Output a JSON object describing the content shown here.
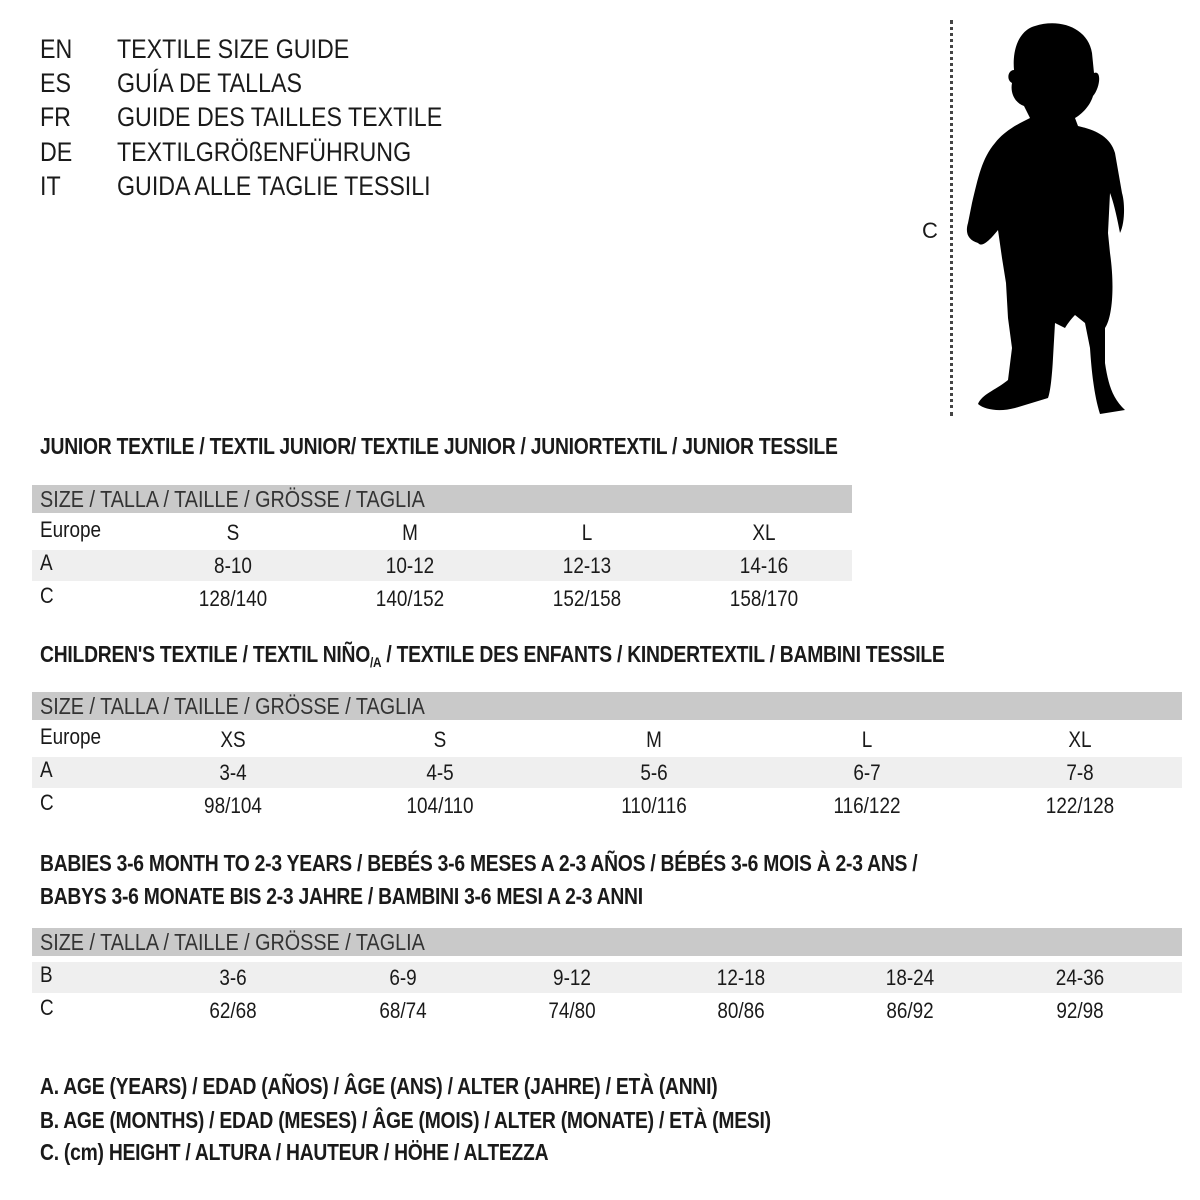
{
  "languages": [
    {
      "code": "EN",
      "title": "TEXTILE SIZE GUIDE"
    },
    {
      "code": "ES",
      "title": "GUÍA DE TALLAS"
    },
    {
      "code": "FR",
      "title": "GUIDE DES TAILLES TEXTILE"
    },
    {
      "code": "DE",
      "title": "TEXTILGRÖßENFÜHRUNG"
    },
    {
      "code": "IT",
      "title": "GUIDA ALLE TAGLIE TESSILI"
    }
  ],
  "figure": {
    "measure_label": "C",
    "icon": "child-silhouette"
  },
  "junior": {
    "title": "JUNIOR TEXTILE / TEXTIL JUNIOR/ TEXTILE JUNIOR / JUNIORTEXTIL / JUNIOR TESSILE",
    "header": "SIZE / TALLA / TAILLE / GRÖSSE / TAGLIA",
    "rows": [
      {
        "label": "Europe",
        "cells": [
          "S",
          "M",
          "L",
          "XL"
        ]
      },
      {
        "label": "A",
        "cells": [
          "8-10",
          "10-12",
          "12-13",
          "14-16"
        ]
      },
      {
        "label": "C",
        "cells": [
          "128/140",
          "140/152",
          "152/158",
          "158/170"
        ]
      }
    ]
  },
  "children": {
    "title_pre": "CHILDREN'S TEXTILE / TEXTIL NIÑO",
    "title_sub": "/A",
    "title_post": " / TEXTILE DES ENFANTS / KINDERTEXTIL / BAMBINI TESSILE",
    "header": "SIZE / TALLA / TAILLE / GRÖSSE / TAGLIA",
    "rows": [
      {
        "label": "Europe",
        "cells": [
          "XS",
          "S",
          "M",
          "L",
          "XL"
        ]
      },
      {
        "label": "A",
        "cells": [
          "3-4",
          "4-5",
          "5-6",
          "6-7",
          "7-8"
        ]
      },
      {
        "label": "C",
        "cells": [
          "98/104",
          "104/110",
          "110/116",
          "116/122",
          "122/128"
        ]
      }
    ]
  },
  "babies": {
    "title_line1": "BABIES 3-6 MONTH TO 2-3 YEARS / BEBÉS 3-6 MESES A 2-3 AÑOS / BÉBÉS 3-6 MOIS À 2-3 ANS /",
    "title_line2": "BABYS 3-6 MONATE BIS 2-3 JAHRE / BAMBINI 3-6 MESI A 2-3 ANNI",
    "header": "SIZE / TALLA / TAILLE / GRÖSSE / TAGLIA",
    "rows": [
      {
        "label": "B",
        "cells": [
          "3-6",
          "6-9",
          "9-12",
          "12-18",
          "18-24",
          "24-36"
        ]
      },
      {
        "label": "C",
        "cells": [
          "62/68",
          "68/74",
          "74/80",
          "80/86",
          "86/92",
          "92/98"
        ]
      }
    ]
  },
  "legend": [
    "A. AGE (YEARS) / EDAD (AÑOS) / ÂGE (ANS) / ALTER (JAHRE) / ETÀ (ANNI)",
    "B. AGE (MONTHS) / EDAD (MESES) / ÂGE (MOIS) / ALTER (MONATE) / ETÀ (MESI)",
    "C. (cm) HEIGHT / ALTURA / HAUTEUR / HÖHE / ALTEZZA"
  ],
  "colors": {
    "header_band": "#c9c9c9",
    "row_shade": "#efefef",
    "text": "#1a1a1a"
  }
}
